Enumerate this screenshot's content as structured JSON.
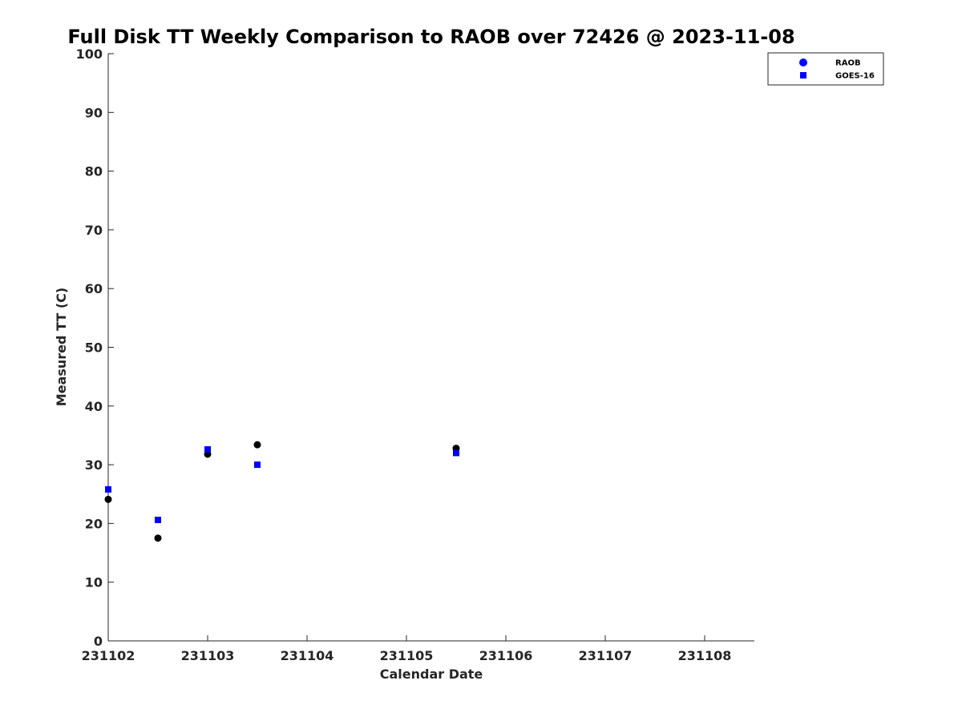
{
  "chart_data": {
    "type": "scatter",
    "title": "Full Disk TT Weekly Comparison to RAOB over 72426 @ 2023-11-08",
    "xlabel": "Calendar Date",
    "ylabel": "Measured TT (C)",
    "xlim": [
      231102,
      231108.5
    ],
    "ylim": [
      0,
      100
    ],
    "x_ticks": [
      231102,
      231103,
      231104,
      231105,
      231106,
      231107,
      231108
    ],
    "x_tick_labels": [
      "231102",
      "231103",
      "231104",
      "231105",
      "231106",
      "231107",
      "231108"
    ],
    "y_ticks": [
      0,
      10,
      20,
      30,
      40,
      50,
      60,
      70,
      80,
      90,
      100
    ],
    "y_tick_labels": [
      "0",
      "10",
      "20",
      "30",
      "40",
      "50",
      "60",
      "70",
      "80",
      "90",
      "100"
    ],
    "grid": false,
    "legend_position": "top-right",
    "series": [
      {
        "name": "RAOB",
        "marker": "circle",
        "color": "#000000",
        "legend_color": "#0000ff",
        "points": [
          {
            "x": 231102.0,
            "y": 24.1
          },
          {
            "x": 231102.5,
            "y": 17.5
          },
          {
            "x": 231103.0,
            "y": 31.8
          },
          {
            "x": 231103.5,
            "y": 33.4
          },
          {
            "x": 231105.5,
            "y": 32.8
          }
        ]
      },
      {
        "name": "GOES-16",
        "marker": "square",
        "color": "#0000ff",
        "legend_color": "#0000ff",
        "points": [
          {
            "x": 231102.0,
            "y": 25.8
          },
          {
            "x": 231102.5,
            "y": 20.6
          },
          {
            "x": 231103.0,
            "y": 32.6
          },
          {
            "x": 231103.5,
            "y": 30.0
          },
          {
            "x": 231105.5,
            "y": 32.0
          }
        ]
      }
    ]
  }
}
